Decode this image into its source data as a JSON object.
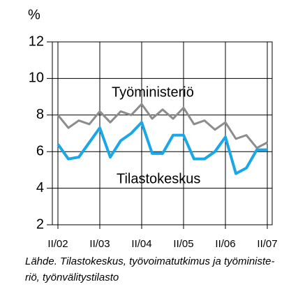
{
  "chart_data": {
    "type": "line",
    "y_unit_label": "%",
    "categories": [
      "II/02",
      null,
      null,
      null,
      "II/03",
      null,
      null,
      null,
      "II/04",
      null,
      null,
      null,
      "II/05",
      null,
      null,
      null,
      "II/06",
      null,
      null,
      null,
      "II/07"
    ],
    "series": [
      {
        "name": "Työministeriö",
        "color": "#8c8c8c",
        "values": [
          8.0,
          7.3,
          7.7,
          7.5,
          8.2,
          7.6,
          8.2,
          8.0,
          8.6,
          7.8,
          8.3,
          7.8,
          8.4,
          7.5,
          7.7,
          7.2,
          7.6,
          6.7,
          6.9,
          6.2,
          6.5
        ]
      },
      {
        "name": "Tilastokeskus",
        "color": "#1aa7e8",
        "values": [
          6.4,
          5.6,
          5.7,
          6.5,
          7.3,
          5.7,
          6.6,
          7.0,
          7.6,
          5.9,
          5.9,
          6.9,
          6.9,
          5.6,
          5.6,
          6.0,
          6.8,
          4.8,
          5.1,
          6.1,
          6.1
        ]
      }
    ],
    "ylim": [
      2,
      12
    ],
    "yticks": [
      2,
      4,
      6,
      8,
      10,
      12
    ],
    "grid": true,
    "source": "Lähde. Tilastokeskus, työvoimatutkimus ja työministe-riö, työnvälitystilasto"
  }
}
